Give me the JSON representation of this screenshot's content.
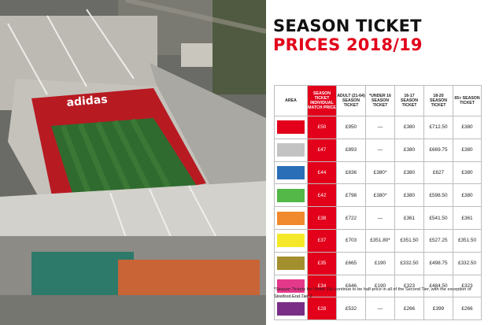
{
  "title": {
    "line1": "SEASON TICKET",
    "line2": "PRICES 2018/19"
  },
  "table": {
    "headers": [
      "AREA",
      "SEASON TICKET INDIVIDUAL MATCH PRICE",
      "ADULT (21-64) SEASON TICKET",
      "*UNDER 16 SEASON TICKET",
      "16-17 SEASON TICKET",
      "18-20 SEASON TICKET",
      "65+ SEASON TICKET"
    ],
    "rows": [
      {
        "color": "#e2001a",
        "cells": [
          "£50",
          "£950",
          "—",
          "£380",
          "£712.50",
          "£380"
        ]
      },
      {
        "color": "#c3c3c3",
        "cells": [
          "£47",
          "£893",
          "—",
          "£380",
          "£669.75",
          "£380"
        ]
      },
      {
        "color": "#2a6eb7",
        "cells": [
          "£44",
          "£836",
          "£380*",
          "£380",
          "£627",
          "£380"
        ]
      },
      {
        "color": "#53b848",
        "cells": [
          "£42",
          "£798",
          "£380*",
          "£380",
          "£598.50",
          "£380"
        ]
      },
      {
        "color": "#f08a2c",
        "cells": [
          "£38",
          "£722",
          "—",
          "£361",
          "£541.50",
          "£361"
        ]
      },
      {
        "color": "#f5e82a",
        "cells": [
          "£37",
          "£703",
          "£351.80*",
          "£351.50",
          "£527.25",
          "£351.50"
        ]
      },
      {
        "color": "#a38f2e",
        "cells": [
          "£35",
          "£665",
          "£190",
          "£332.50",
          "£498.75",
          "£332.50"
        ]
      },
      {
        "color": "#e4388b",
        "cells": [
          "£34",
          "£646",
          "£190",
          "£323",
          "£484.50",
          "£323"
        ]
      },
      {
        "color": "#7a2e86",
        "cells": [
          "£28",
          "£532",
          "—",
          "£266",
          "£399",
          "£266"
        ]
      }
    ]
  },
  "footnote": "*Season Tickets for Under 16s continue to be half-price in all of the Second Tier, with the exception of Stretford End Tier 2",
  "photo": {
    "sign_text": "adidas"
  }
}
